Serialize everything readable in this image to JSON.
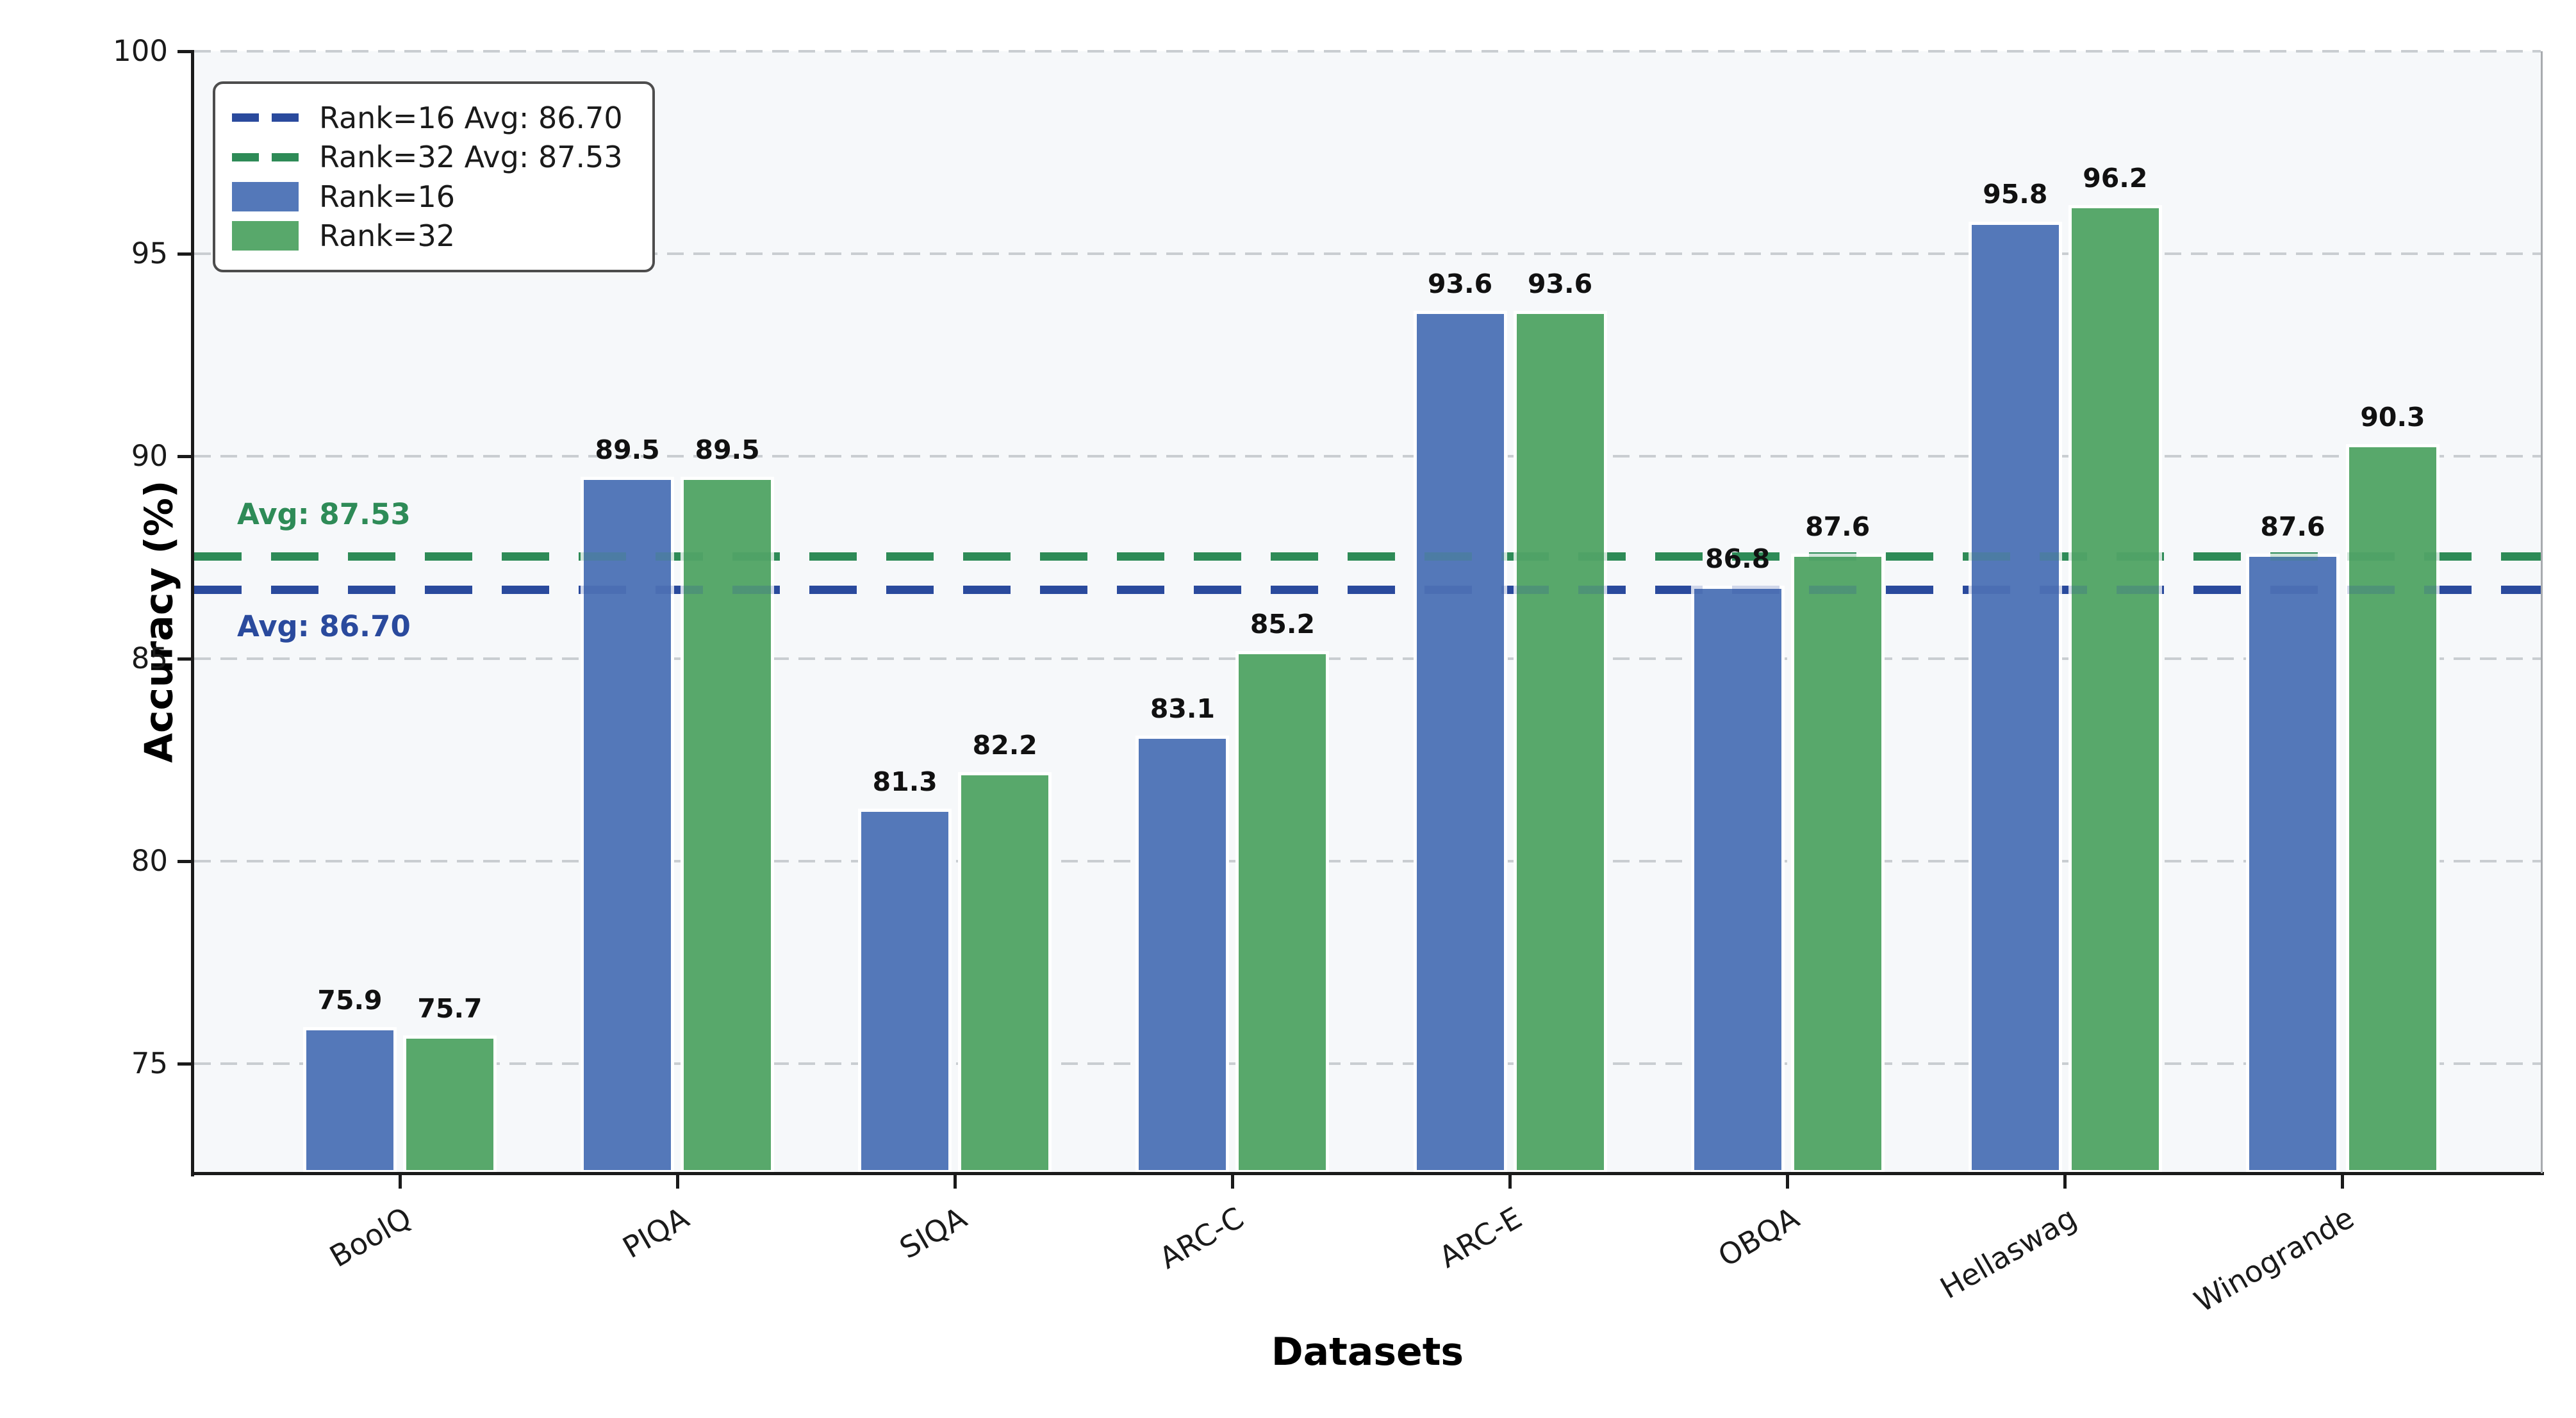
{
  "chart_data": {
    "type": "bar",
    "title": "",
    "xlabel": "Datasets",
    "ylabel": "Accuracy (%)",
    "categories": [
      "BoolQ",
      "PIQA",
      "SIQA",
      "ARC-C",
      "ARC-E",
      "OBQA",
      "Hellaswag",
      "Winogrande"
    ],
    "series": [
      {
        "name": "Rank=16",
        "color": "#5478b9",
        "values": [
          75.9,
          89.5,
          81.3,
          83.1,
          93.6,
          86.8,
          95.8,
          87.6
        ]
      },
      {
        "name": "Rank=32",
        "color": "#58a86b",
        "values": [
          75.7,
          89.5,
          82.2,
          85.2,
          93.6,
          87.6,
          96.2,
          90.3
        ]
      }
    ],
    "avg_lines": [
      {
        "value": 87.53,
        "color": "#2e8b57",
        "annotation": "Avg: 87.53",
        "annotation_side": "above"
      },
      {
        "value": 86.7,
        "color": "#2a4a9d",
        "annotation": "Avg: 86.70",
        "annotation_side": "below"
      }
    ],
    "ylim": [
      72.3,
      100
    ],
    "yticks": [
      75,
      80,
      85,
      90,
      95,
      100
    ],
    "grid": "horizontal dashed, light gray",
    "legend_position": "upper left",
    "bar_value_decimals": 1
  },
  "legend_items": [
    {
      "type": "dashed-line",
      "label": "Rank=16 Avg: 86.70",
      "color": "#2a4a9d"
    },
    {
      "type": "dashed-line",
      "label": "Rank=32 Avg: 87.53",
      "color": "#2e8b57"
    },
    {
      "type": "swatch",
      "label": "Rank=16",
      "color": "#5478b9"
    },
    {
      "type": "swatch",
      "label": "Rank=32",
      "color": "#58a86b"
    }
  ],
  "colors": {
    "axes_background": "#f6f8fa",
    "figure_background": "#ffffff",
    "gridline": "#c9cdd1",
    "spine": "#1a1a1a",
    "right_spine": "#a8abaf"
  }
}
